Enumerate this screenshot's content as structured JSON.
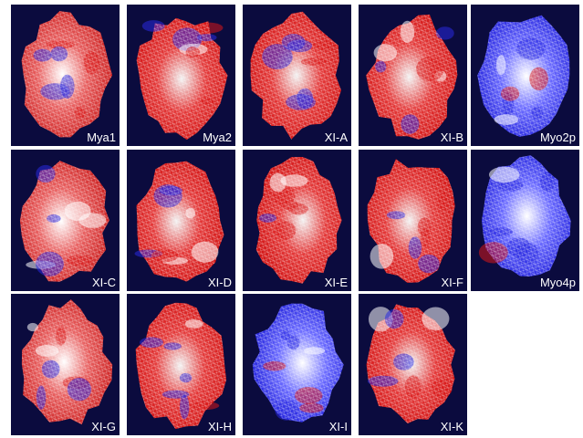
{
  "panels": [
    {
      "label": "Mya1"
    },
    {
      "label": "Mya2"
    },
    {
      "label": "XI-A"
    },
    {
      "label": "XI-B"
    },
    {
      "label": "Myo2p"
    },
    {
      "label": "XI-C"
    },
    {
      "label": "XI-D"
    },
    {
      "label": "XI-E"
    },
    {
      "label": "XI-F"
    },
    {
      "label": "Myo4p"
    },
    {
      "label": "XI-G"
    },
    {
      "label": "XI-H"
    },
    {
      "label": "XI-I"
    },
    {
      "label": "XI-K"
    }
  ]
}
